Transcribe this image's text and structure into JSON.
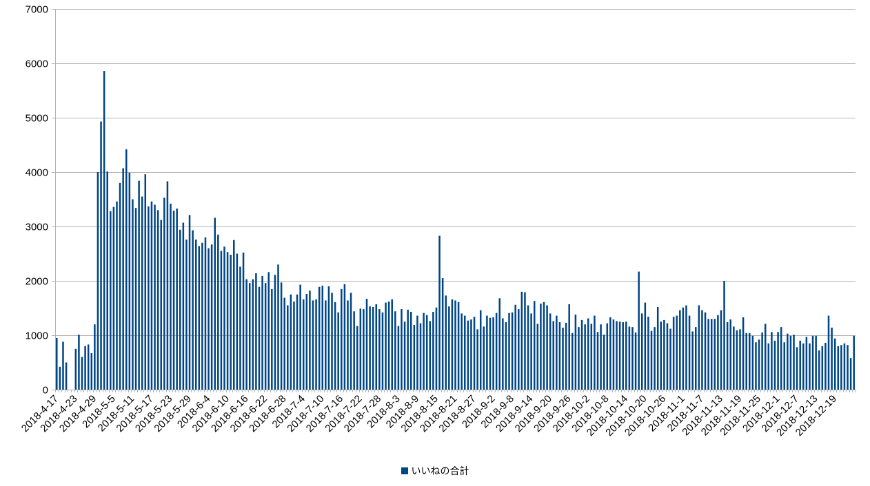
{
  "colors": {
    "bar": "#004586",
    "grid": "#b3b3b3",
    "axis": "#b3b3b3",
    "text": "#000000"
  },
  "legend": {
    "label": "いいねの合計"
  },
  "chart_data": {
    "type": "bar",
    "title": "",
    "xlabel": "",
    "ylabel": "",
    "ylim": [
      0,
      7000
    ],
    "yticks": [
      0,
      1000,
      2000,
      3000,
      4000,
      5000,
      6000,
      7000
    ],
    "grid": true,
    "legend_position": "bottom",
    "start_date": "2018-4-17",
    "x_tick_labels": [
      "2018-4-17",
      "2018-4-23",
      "2018-4-29",
      "2018-5-5",
      "2018-5-11",
      "2018-5-17",
      "2018-5-23",
      "2018-5-29",
      "2018-6-4",
      "2018-6-10",
      "2018-6-16",
      "2018-6-22",
      "2018-6-28",
      "2018-7-4",
      "2018-7-10",
      "2018-7-16",
      "2018-7-22",
      "2018-7-28",
      "2018-8-3",
      "2018-8-9",
      "2018-8-15",
      "2018-8-21",
      "2018-8-27",
      "2018-9-2",
      "2018-9-8",
      "2018-9-14",
      "2018-9-20",
      "2018-9-26",
      "2018-10-2",
      "2018-10-8",
      "2018-10-14",
      "2018-10-20",
      "2018-10-26",
      "2018-11-1",
      "2018-11-7",
      "2018-11-13",
      "2018-11-19",
      "2018-11-25",
      "2018-12-1",
      "2018-12-7",
      "2018-12-13",
      "2018-12-19"
    ],
    "series": [
      {
        "name": "いいねの合計",
        "values": [
          950,
          420,
          880,
          500,
          0,
          0,
          750,
          1010,
          600,
          800,
          830,
          670,
          1200,
          4000,
          4930,
          5860,
          4010,
          3280,
          3360,
          3460,
          3800,
          4070,
          4420,
          3990,
          3500,
          3340,
          3840,
          3550,
          3960,
          3370,
          3460,
          3400,
          3300,
          3120,
          3530,
          3830,
          3420,
          3290,
          3330,
          2940,
          3070,
          2760,
          3210,
          2930,
          2760,
          2640,
          2700,
          2800,
          2600,
          2670,
          3160,
          2850,
          2550,
          2630,
          2530,
          2480,
          2750,
          2500,
          2260,
          2520,
          2030,
          1960,
          2030,
          2140,
          1890,
          2090,
          1960,
          2160,
          1850,
          2110,
          2300,
          1970,
          1690,
          1550,
          1750,
          1620,
          1750,
          1930,
          1660,
          1760,
          1820,
          1640,
          1660,
          1890,
          1910,
          1640,
          1900,
          1780,
          1610,
          1420,
          1850,
          1940,
          1640,
          1780,
          1440,
          1170,
          1490,
          1480,
          1670,
          1530,
          1520,
          1570,
          1480,
          1420,
          1600,
          1620,
          1660,
          1440,
          1170,
          1480,
          1250,
          1470,
          1430,
          1190,
          1360,
          1220,
          1410,
          1370,
          1260,
          1430,
          1510,
          2830,
          2050,
          1730,
          1530,
          1660,
          1640,
          1610,
          1400,
          1360,
          1270,
          1290,
          1340,
          1110,
          1460,
          1160,
          1360,
          1320,
          1330,
          1410,
          1680,
          1310,
          1240,
          1410,
          1420,
          1560,
          1480,
          1800,
          1790,
          1550,
          1400,
          1630,
          1210,
          1580,
          1610,
          1550,
          1400,
          1260,
          1360,
          1240,
          1140,
          1230,
          1570,
          1040,
          1380,
          1150,
          1280,
          1200,
          1310,
          1210,
          1360,
          1060,
          1200,
          1010,
          1220,
          1330,
          1290,
          1260,
          1250,
          1240,
          1250,
          1160,
          1150,
          1050,
          2170,
          1400,
          1600,
          1340,
          1080,
          1150,
          1520,
          1250,
          1280,
          1220,
          1120,
          1340,
          1360,
          1460,
          1510,
          1550,
          1360,
          1070,
          1150,
          1550,
          1460,
          1420,
          1300,
          1300,
          1300,
          1370,
          1460,
          2000,
          1240,
          1290,
          1160,
          1090,
          1110,
          1330,
          1040,
          1040,
          990,
          870,
          920,
          1050,
          1210,
          850,
          1060,
          900,
          1060,
          1150,
          870,
          1030,
          990,
          1010,
          780,
          900,
          850,
          970,
          850,
          990,
          990,
          720,
          800,
          860,
          1360,
          1140,
          940,
          800,
          820,
          850,
          820,
          580,
          990
        ]
      }
    ]
  }
}
